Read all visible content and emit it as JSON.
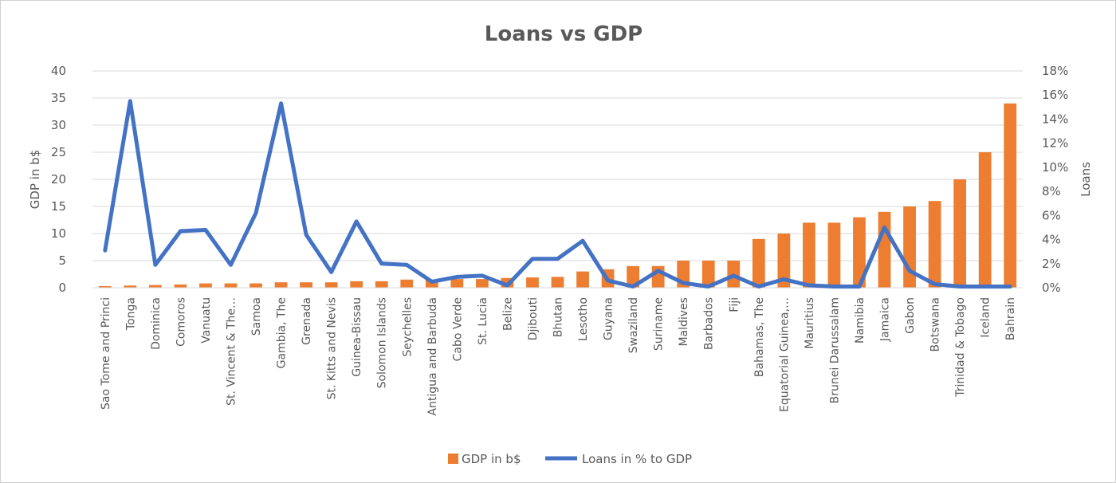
{
  "chart_data": {
    "type": "bar",
    "title": "Loans vs GDP",
    "ylabel": "GDP in b$",
    "y2label": "Loans",
    "ylim": [
      0,
      40
    ],
    "y2lim": [
      0,
      0.18
    ],
    "yticks": [
      "0",
      "5",
      "10",
      "15",
      "20",
      "25",
      "30",
      "35",
      "40"
    ],
    "y2ticks": [
      "0%",
      "2%",
      "4%",
      "6%",
      "8%",
      "10%",
      "12%",
      "14%",
      "16%",
      "18%"
    ],
    "grid": true,
    "legend_position": "bottom",
    "categories": [
      "Sao Tome and Princi",
      "Tonga",
      "Dominica",
      "Comoros",
      "Vanuatu",
      "St. Vincent & The…",
      "Samoa",
      "Gambia, The",
      "Grenada",
      "St. Kitts and Nevis",
      "Guinea-Bissau",
      "Solomon Islands",
      "Seychelles",
      "Antigua and Barbuda",
      "Cabo Verde",
      "St. Lucia",
      "Belize",
      "Djibouti",
      "Bhutan",
      "Lesotho",
      "Guyana",
      "Swaziland",
      "Suriname",
      "Maldives",
      "Barbados",
      "Fiji",
      "Bahamas, The",
      "Equatorial Guinea,…",
      "Mauritius",
      "Brunei Darussalam",
      "Namibia",
      "Jamaica",
      "Gabon",
      "Botswana",
      "Trinidad & Tobago",
      "Iceland",
      "Bahrain"
    ],
    "series": [
      {
        "name": "GDP in b$",
        "type": "bar",
        "axis": "left",
        "color": "#ED7D31",
        "values": [
          0.3,
          0.4,
          0.5,
          0.6,
          0.8,
          0.8,
          0.8,
          1.0,
          1.0,
          1.0,
          1.2,
          1.2,
          1.5,
          1.4,
          1.6,
          1.6,
          1.8,
          1.9,
          2.0,
          3.0,
          3.4,
          4.0,
          4.0,
          5.0,
          5.0,
          5.0,
          9.0,
          10.0,
          12.0,
          12.0,
          13.0,
          14.0,
          15.0,
          16.0,
          20.0,
          25.0,
          34.0
        ]
      },
      {
        "name": "Loans in % to GDP",
        "type": "line",
        "axis": "right",
        "color": "#4472C4",
        "values": [
          0.031,
          0.155,
          0.019,
          0.047,
          0.048,
          0.019,
          0.062,
          0.153,
          0.044,
          0.013,
          0.055,
          0.02,
          0.019,
          0.005,
          0.009,
          0.01,
          0.002,
          0.024,
          0.024,
          0.039,
          0.006,
          0.001,
          0.014,
          0.004,
          0.001,
          0.01,
          0.001,
          0.007,
          0.002,
          0.001,
          0.001,
          0.05,
          0.014,
          0.003,
          0.001,
          0.001,
          0.001
        ]
      }
    ]
  }
}
